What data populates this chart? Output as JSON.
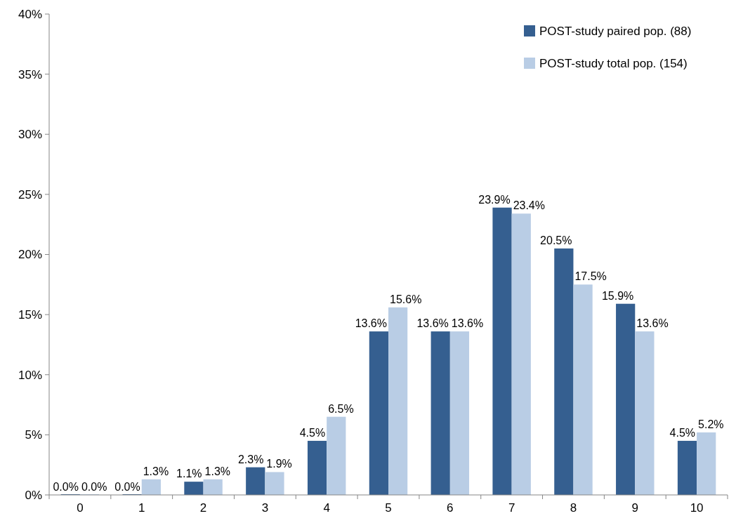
{
  "chart_data": {
    "type": "bar",
    "categories": [
      "0",
      "1",
      "2",
      "3",
      "4",
      "5",
      "6",
      "7",
      "8",
      "9",
      "10"
    ],
    "series": [
      {
        "name": "POST-study paired pop. (88)",
        "color": "#355f90",
        "values": [
          0,
          0,
          1.1,
          2.3,
          4.5,
          13.6,
          13.6,
          23.9,
          20.5,
          15.9,
          4.5
        ],
        "value_labels": [
          "0.0%",
          "0.0%",
          "1.1%",
          "2.3%",
          "4.5%",
          "13.6%",
          "13.6%",
          "23.9%",
          "20.5%",
          "15.9%",
          "4.5%"
        ]
      },
      {
        "name": "POST-study total pop. (154)",
        "color": "#b9cde5",
        "values": [
          0,
          1.3,
          1.3,
          1.9,
          6.5,
          15.6,
          13.6,
          23.4,
          17.5,
          13.6,
          5.2
        ],
        "value_labels": [
          "0.0%",
          "1.3%",
          "1.3%",
          "1.9%",
          "6.5%",
          "15.6%",
          "13.6%",
          "23.4%",
          "17.5%",
          "13.6%",
          "5.2%"
        ]
      }
    ],
    "ylim": [
      0,
      40
    ],
    "yticks": [
      {
        "value": 0,
        "label": "0%"
      },
      {
        "value": 5,
        "label": "5%"
      },
      {
        "value": 10,
        "label": "10%"
      },
      {
        "value": 15,
        "label": "15%"
      },
      {
        "value": 20,
        "label": "20%"
      },
      {
        "value": 25,
        "label": "25%"
      },
      {
        "value": 30,
        "label": "30%"
      },
      {
        "value": 35,
        "label": "35%"
      },
      {
        "value": 40,
        "label": "40%"
      }
    ],
    "grid": false,
    "legend": "top right"
  }
}
